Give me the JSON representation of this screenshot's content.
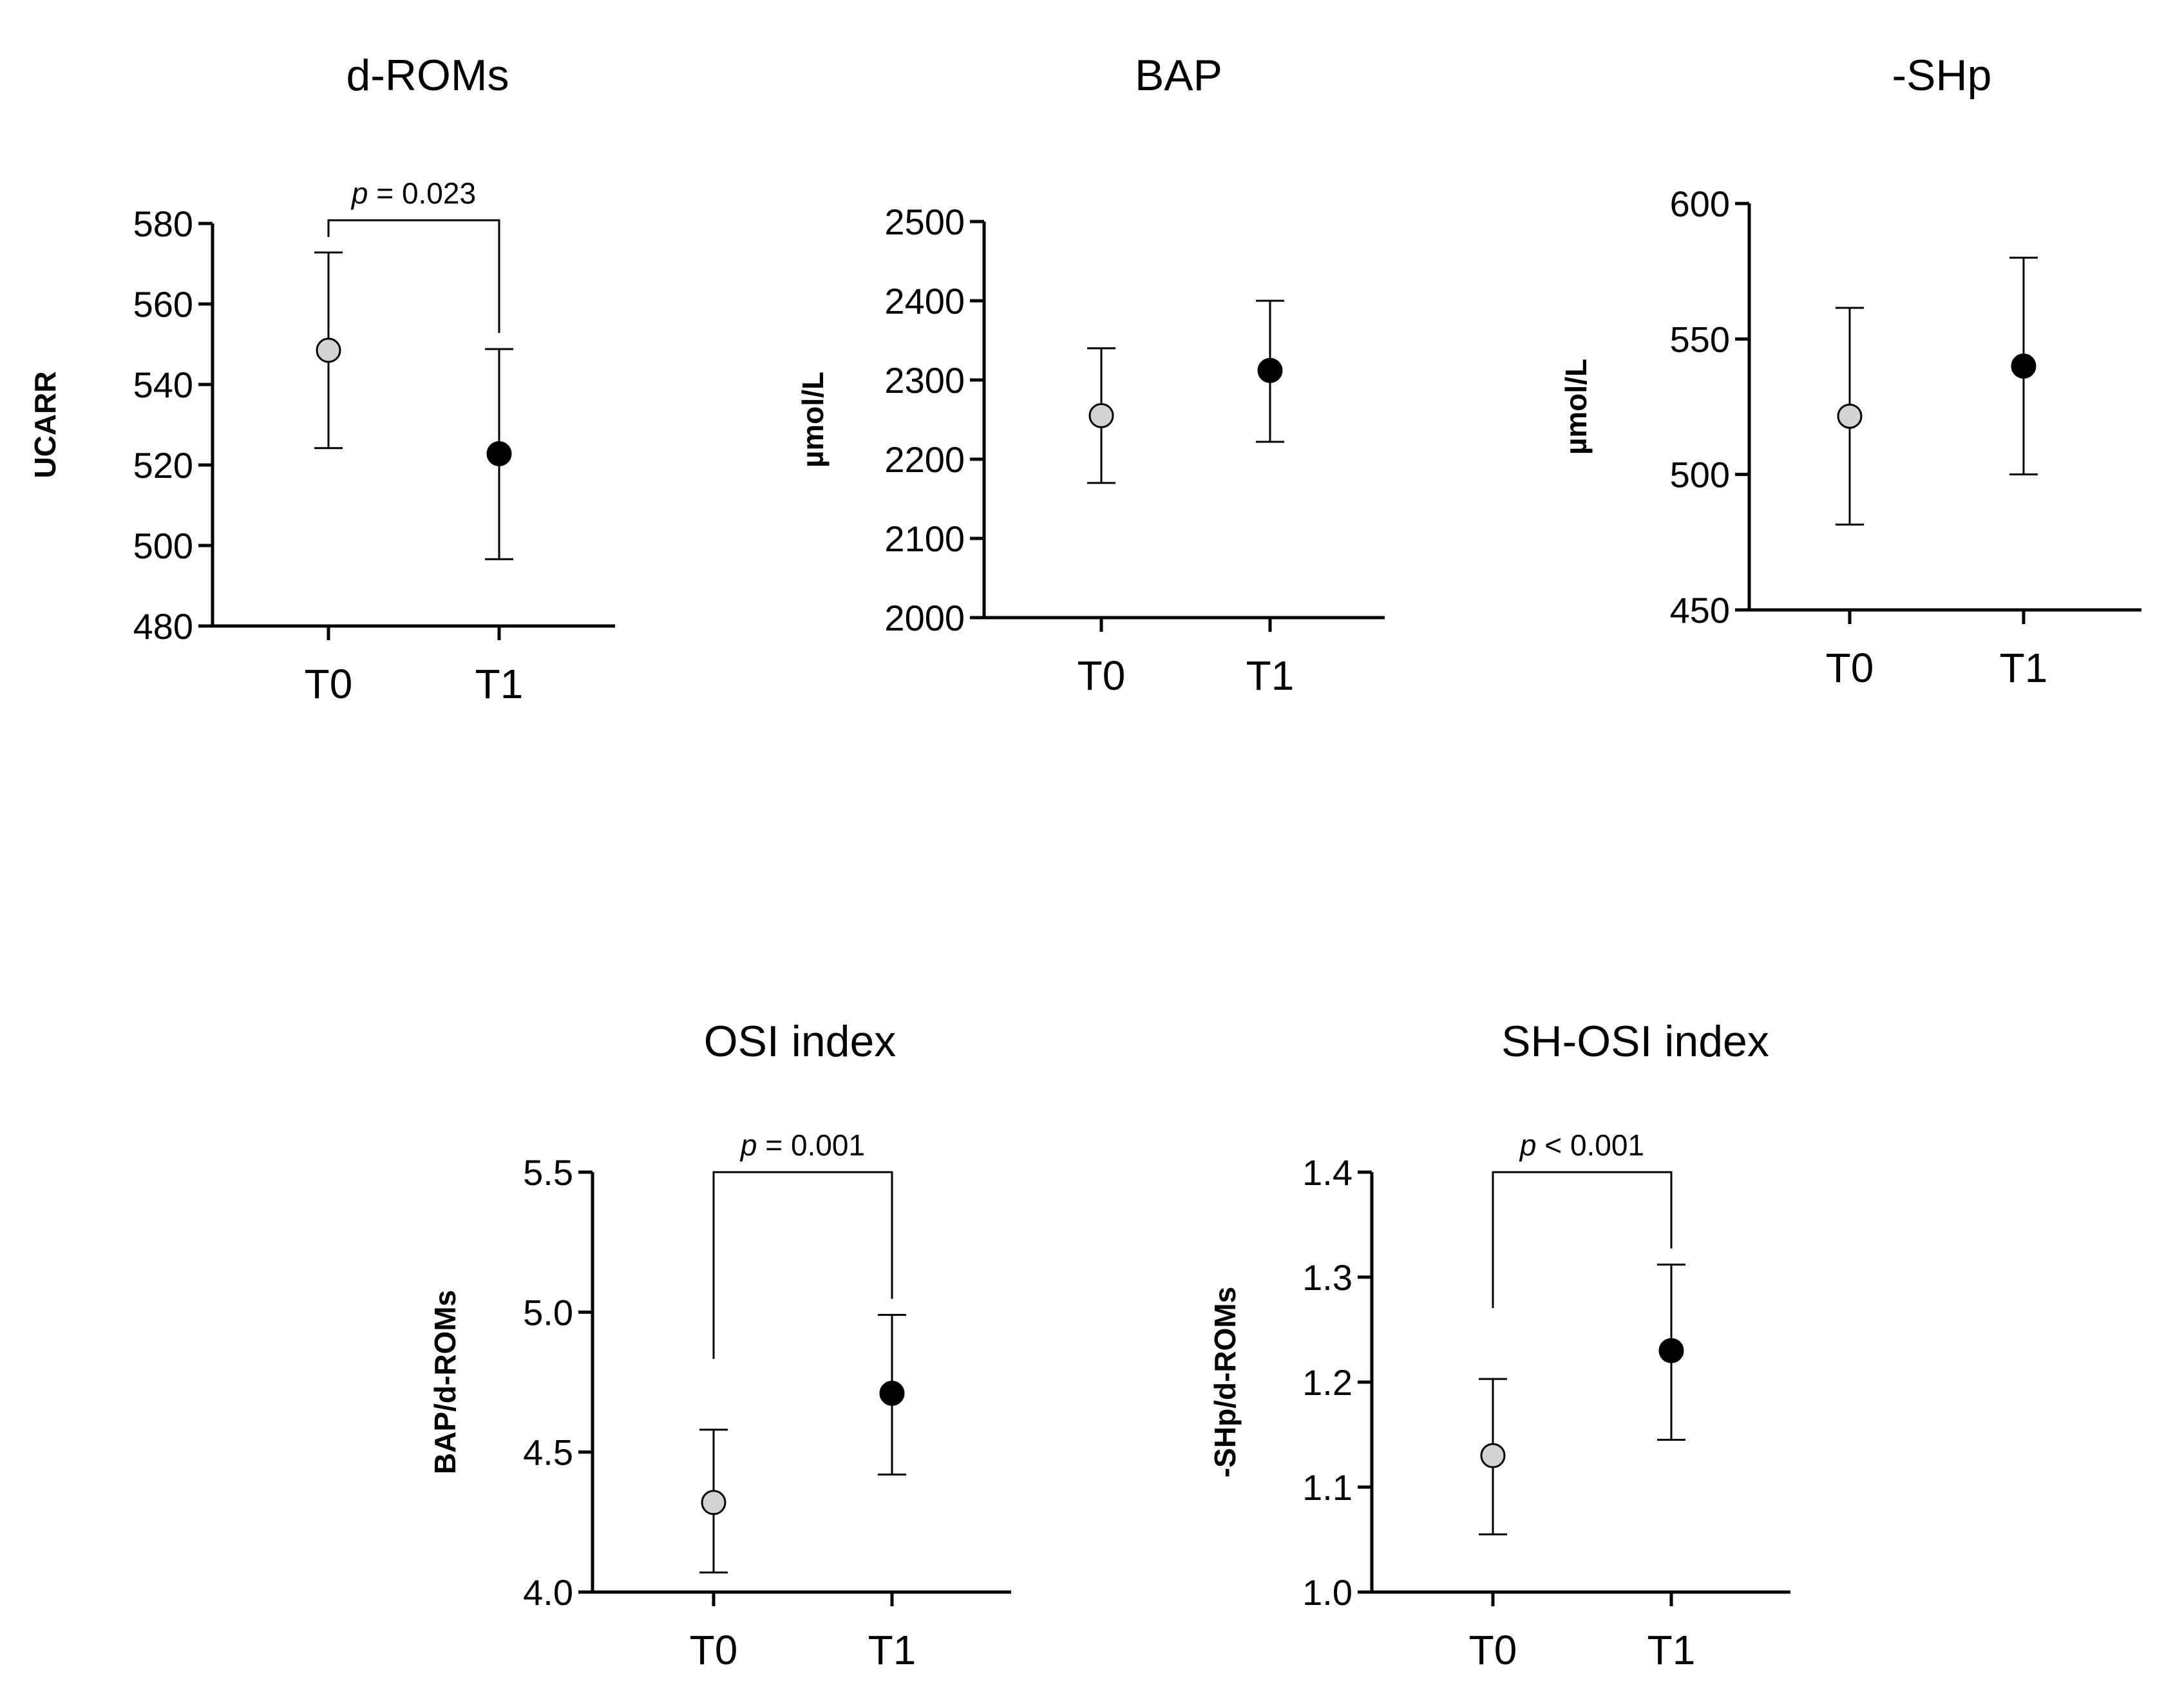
{
  "chart_data": [
    {
      "type": "scatter",
      "title": "d-ROMs",
      "ylabel": "UCARR",
      "xlabel": "",
      "categories": [
        "T0",
        "T1"
      ],
      "means": [
        548.5,
        522.8
      ],
      "err_low": [
        524.2,
        496.6
      ],
      "err_high": [
        572.8,
        548.8
      ],
      "point_colors": [
        "#d3d3d3",
        "#000000"
      ],
      "ylim": [
        480,
        580
      ],
      "yticks": [
        480,
        500,
        520,
        540,
        560,
        580
      ],
      "ytick_labels": [
        "480",
        "500",
        "520",
        "540",
        "560",
        "580"
      ],
      "significance": "p = 0.023",
      "grid": false
    },
    {
      "type": "scatter",
      "title": "BAP",
      "ylabel": "µmol/L",
      "xlabel": "",
      "categories": [
        "T0",
        "T1"
      ],
      "means": [
        2255,
        2312
      ],
      "err_low": [
        2170,
        2222
      ],
      "err_high": [
        2340,
        2400
      ],
      "point_colors": [
        "#d3d3d3",
        "#000000"
      ],
      "ylim": [
        2000,
        2500
      ],
      "yticks": [
        2000,
        2100,
        2200,
        2300,
        2400,
        2500
      ],
      "ytick_labels": [
        "2000",
        "2100",
        "2200",
        "2300",
        "2400",
        "2500"
      ],
      "significance": "",
      "grid": false
    },
    {
      "type": "scatter",
      "title": "-SHp",
      "ylabel": "µmol/L",
      "xlabel": "",
      "categories": [
        "T0",
        "T1"
      ],
      "means": [
        521.5,
        540
      ],
      "err_low": [
        481.5,
        500
      ],
      "err_high": [
        561.5,
        580
      ],
      "point_colors": [
        "#d3d3d3",
        "#000000"
      ],
      "ylim": [
        450,
        600
      ],
      "yticks": [
        450,
        500,
        550,
        600
      ],
      "ytick_labels": [
        "450",
        "500",
        "550",
        "600"
      ],
      "significance": "",
      "grid": false
    },
    {
      "type": "scatter",
      "title": "OSI index",
      "ylabel": "BAP/d-ROMs",
      "xlabel": "",
      "categories": [
        "T0",
        "T1"
      ],
      "means": [
        4.32,
        4.71
      ],
      "err_low": [
        4.07,
        4.42
      ],
      "err_high": [
        4.58,
        4.99
      ],
      "point_colors": [
        "#d3d3d3",
        "#000000"
      ],
      "ylim": [
        4.0,
        5.5
      ],
      "yticks": [
        4.0,
        4.5,
        5.0,
        5.5
      ],
      "ytick_labels": [
        "4.0",
        "4.5",
        "5.0",
        "5.5"
      ],
      "significance": "p = 0.001",
      "grid": false
    },
    {
      "type": "scatter",
      "title": "SH-OSI index",
      "ylabel": "-SHp/d-ROMs",
      "xlabel": "",
      "categories": [
        "T0",
        "T1"
      ],
      "means": [
        1.13,
        1.23
      ],
      "err_low": [
        1.055,
        1.145
      ],
      "err_high": [
        1.203,
        1.312
      ],
      "point_colors": [
        "#d3d3d3",
        "#000000"
      ],
      "ylim": [
        1.0,
        1.4
      ],
      "yticks": [
        1.0,
        1.1,
        1.2,
        1.3,
        1.4
      ],
      "ytick_labels": [
        "1.0",
        "1.1",
        "1.2",
        "1.3",
        "1.4"
      ],
      "significance": "p < 0.001",
      "grid": false
    }
  ]
}
